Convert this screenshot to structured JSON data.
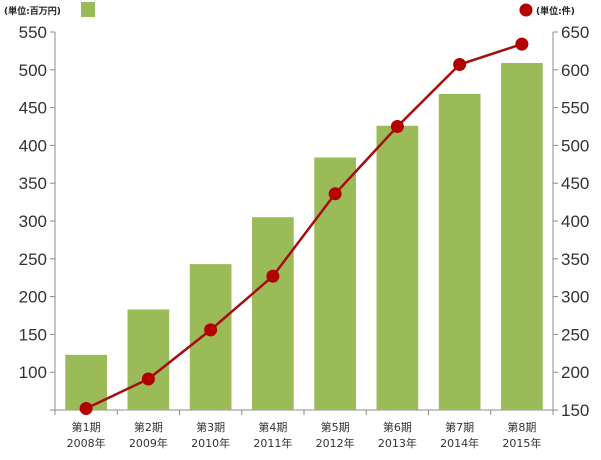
{
  "legend": {
    "left_unit": "(単位:百万円)",
    "right_unit": "(単位:件)"
  },
  "colors": {
    "bar": "#9bbb59",
    "line": "#a60d0d",
    "marker": "#b30000",
    "axis": "#8c8c8c"
  },
  "chart_data": {
    "type": "bar+line",
    "categories": [
      [
        "第1期",
        "2008年"
      ],
      [
        "第2期",
        "2009年"
      ],
      [
        "第3期",
        "2010年"
      ],
      [
        "第4期",
        "2011年"
      ],
      [
        "第5期",
        "2012年"
      ],
      [
        "第6期",
        "2013年"
      ],
      [
        "第7期",
        "2014年"
      ],
      [
        "第8期",
        "2015年"
      ]
    ],
    "y_left": {
      "min": 50,
      "max": 550,
      "ticks": [
        100,
        150,
        200,
        250,
        300,
        350,
        400,
        450,
        500,
        550
      ],
      "unit": "(単位:百万円)"
    },
    "y_right": {
      "min": 150,
      "max": 650,
      "ticks": [
        150,
        200,
        250,
        300,
        350,
        400,
        450,
        500,
        550,
        600,
        650
      ],
      "unit": "(単位:件)"
    },
    "series": [
      {
        "type": "bar",
        "axis": "left",
        "values": [
          123,
          183,
          243,
          305,
          384,
          426,
          468,
          509
        ]
      },
      {
        "type": "line",
        "axis": "right",
        "values": [
          152,
          191,
          256,
          327,
          436,
          525,
          607,
          634
        ]
      }
    ],
    "grid": false,
    "legend_position": "top"
  }
}
